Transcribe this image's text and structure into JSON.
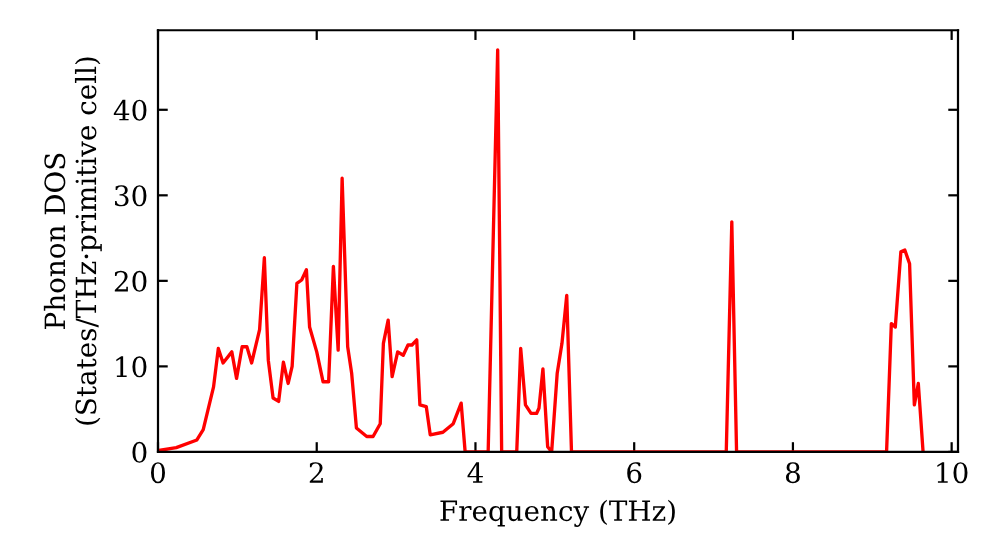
{
  "chart_data": {
    "type": "line",
    "xlabel": "Frequency (THz)",
    "ylabel": "Phonon DOS\n(States/THz·primitive cell)",
    "xlim": [
      0,
      10.08
    ],
    "ylim": [
      0,
      49.3
    ],
    "xticks": [
      0,
      2,
      4,
      6,
      8,
      10
    ],
    "yticks": [
      0,
      10,
      20,
      30,
      40
    ],
    "grid": false,
    "legend": false,
    "marker": "none",
    "line_style": "solid",
    "series": [
      {
        "color": "#ff0000",
        "x": [
          0.03,
          0.23,
          0.49,
          0.57,
          0.7,
          0.76,
          0.82,
          0.93,
          0.99,
          1.06,
          1.12,
          1.18,
          1.28,
          1.34,
          1.39,
          1.45,
          1.52,
          1.58,
          1.64,
          1.69,
          1.75,
          1.81,
          1.87,
          1.91,
          2.0,
          2.08,
          2.15,
          2.21,
          2.27,
          2.32,
          2.39,
          2.44,
          2.5,
          2.63,
          2.71,
          2.8,
          2.84,
          2.9,
          2.95,
          3.02,
          3.09,
          3.15,
          3.2,
          3.26,
          3.3,
          3.38,
          3.43,
          3.59,
          3.72,
          3.82,
          3.87,
          4.16,
          4.28,
          4.33,
          4.52,
          4.57,
          4.63,
          4.7,
          4.77,
          4.8,
          4.85,
          4.91,
          4.96,
          5.03,
          5.09,
          5.15,
          5.21,
          7.16,
          7.23,
          7.29,
          9.18,
          9.24,
          9.29,
          9.36,
          9.41,
          9.47,
          9.53,
          9.58,
          9.64
        ],
        "values": [
          0.2,
          0.5,
          1.4,
          2.6,
          7.6,
          12.1,
          10.4,
          11.7,
          8.6,
          12.3,
          12.3,
          10.4,
          14.3,
          22.7,
          10.7,
          6.3,
          5.9,
          10.5,
          8.0,
          10.0,
          19.7,
          20.1,
          21.3,
          14.6,
          11.7,
          8.2,
          8.2,
          21.7,
          11.9,
          32.0,
          12.3,
          9.2,
          2.8,
          1.8,
          1.8,
          3.3,
          12.7,
          15.4,
          8.8,
          11.7,
          11.3,
          12.5,
          12.5,
          13.1,
          5.5,
          5.3,
          2.0,
          2.3,
          3.3,
          5.7,
          0,
          0,
          47,
          0,
          0,
          12.1,
          5.5,
          4.5,
          4.5,
          5.1,
          9.7,
          0.6,
          0,
          9.2,
          12.7,
          18.3,
          0,
          0,
          26.9,
          0,
          0,
          15.0,
          14.6,
          23.4,
          23.6,
          22.0,
          5.5,
          8.0,
          0
        ]
      }
    ]
  }
}
